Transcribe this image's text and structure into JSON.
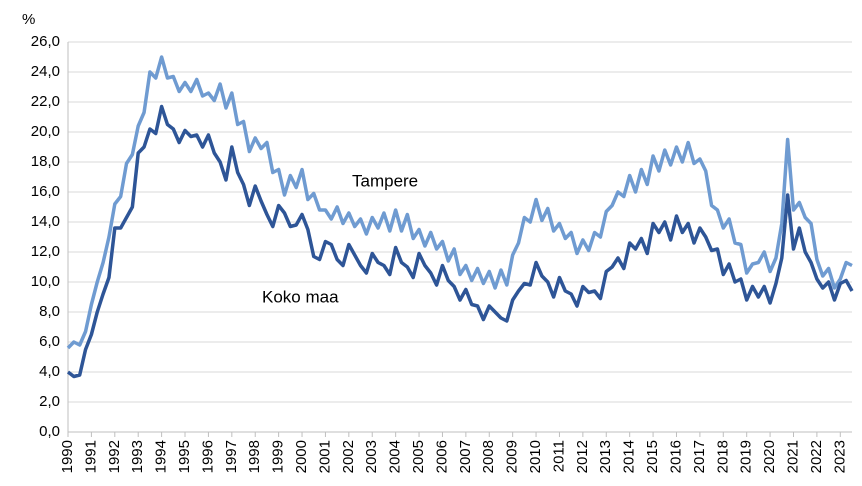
{
  "chart_data": {
    "type": "line",
    "ylabel": "%",
    "annotations": [
      "Tampere",
      "Koko maa"
    ],
    "x": [
      1990,
      1990.25,
      1990.5,
      1990.75,
      1991,
      1991.25,
      1991.5,
      1991.75,
      1992,
      1992.25,
      1992.5,
      1992.75,
      1993,
      1993.25,
      1993.5,
      1993.75,
      1994,
      1994.25,
      1994.5,
      1994.75,
      1995,
      1995.25,
      1995.5,
      1995.75,
      1996,
      1996.25,
      1996.5,
      1996.75,
      1997,
      1997.25,
      1997.5,
      1997.75,
      1998,
      1998.25,
      1998.5,
      1998.75,
      1999,
      1999.25,
      1999.5,
      1999.75,
      2000,
      2000.25,
      2000.5,
      2000.75,
      2001,
      2001.25,
      2001.5,
      2001.75,
      2002,
      2002.25,
      2002.5,
      2002.75,
      2003,
      2003.25,
      2003.5,
      2003.75,
      2004,
      2004.25,
      2004.5,
      2004.75,
      2005,
      2005.25,
      2005.5,
      2005.75,
      2006,
      2006.25,
      2006.5,
      2006.75,
      2007,
      2007.25,
      2007.5,
      2007.75,
      2008,
      2008.25,
      2008.5,
      2008.75,
      2009,
      2009.25,
      2009.5,
      2009.75,
      2010,
      2010.25,
      2010.5,
      2010.75,
      2011,
      2011.25,
      2011.5,
      2011.75,
      2012,
      2012.25,
      2012.5,
      2012.75,
      2013,
      2013.25,
      2013.5,
      2013.75,
      2014,
      2014.25,
      2014.5,
      2014.75,
      2015,
      2015.25,
      2015.5,
      2015.75,
      2016,
      2016.25,
      2016.5,
      2016.75,
      2017,
      2017.25,
      2017.5,
      2017.75,
      2018,
      2018.25,
      2018.5,
      2018.75,
      2019,
      2019.25,
      2019.5,
      2019.75,
      2020,
      2020.25,
      2020.5,
      2020.75,
      2021,
      2021.25,
      2021.5,
      2021.75,
      2022,
      2022.25,
      2022.5,
      2022.75,
      2023,
      2023.25,
      2023.5
    ],
    "series": [
      {
        "name": "Tampere",
        "color": "#6f9bd1",
        "values": [
          5.6,
          6.0,
          5.8,
          6.7,
          8.5,
          10.0,
          11.3,
          13.0,
          15.2,
          15.7,
          17.9,
          18.5,
          20.4,
          21.3,
          24.0,
          23.6,
          25.0,
          23.6,
          23.7,
          22.7,
          23.3,
          22.7,
          23.5,
          22.4,
          22.6,
          22.1,
          23.2,
          21.6,
          22.6,
          20.5,
          20.7,
          18.7,
          19.6,
          18.9,
          19.3,
          17.3,
          17.5,
          15.8,
          17.1,
          16.3,
          17.5,
          15.5,
          15.9,
          14.8,
          14.8,
          14.2,
          15.0,
          13.9,
          14.6,
          13.7,
          14.2,
          13.2,
          14.3,
          13.6,
          14.6,
          13.4,
          14.8,
          13.4,
          14.5,
          12.9,
          13.5,
          12.4,
          13.3,
          12.2,
          12.7,
          11.4,
          12.2,
          10.5,
          11.1,
          10.1,
          10.9,
          9.9,
          10.7,
          9.6,
          10.8,
          9.8,
          11.8,
          12.6,
          14.3,
          14.0,
          15.5,
          14.1,
          14.9,
          13.4,
          13.9,
          12.9,
          13.3,
          11.9,
          12.8,
          12.1,
          13.3,
          13.0,
          14.7,
          15.1,
          16.0,
          15.7,
          17.1,
          16.0,
          17.5,
          16.5,
          18.4,
          17.4,
          18.8,
          17.8,
          19.0,
          18.0,
          19.3,
          17.9,
          18.2,
          17.4,
          15.1,
          14.8,
          13.6,
          14.2,
          12.6,
          12.5,
          10.6,
          11.2,
          11.3,
          12.0,
          10.7,
          11.6,
          13.9,
          19.5,
          14.8,
          15.3,
          14.3,
          13.9,
          11.5,
          10.4,
          10.9,
          9.6,
          10.2,
          11.3,
          11.1
        ]
      },
      {
        "name": "Koko maa",
        "color": "#2e5597",
        "values": [
          4.0,
          3.7,
          3.8,
          5.5,
          6.5,
          8.0,
          9.2,
          10.3,
          13.6,
          13.6,
          14.3,
          15.0,
          18.6,
          19.0,
          20.2,
          19.9,
          21.7,
          20.5,
          20.2,
          19.3,
          20.1,
          19.7,
          19.8,
          19.0,
          19.8,
          18.6,
          18.0,
          16.8,
          19.0,
          17.3,
          16.5,
          15.1,
          16.4,
          15.4,
          14.5,
          13.7,
          15.1,
          14.6,
          13.7,
          13.8,
          14.5,
          13.5,
          11.7,
          11.5,
          12.7,
          12.5,
          11.5,
          11.1,
          12.5,
          11.8,
          11.1,
          10.6,
          11.9,
          11.3,
          11.1,
          10.5,
          12.3,
          11.3,
          11.0,
          10.3,
          11.9,
          11.1,
          10.6,
          9.8,
          11.1,
          10.1,
          9.7,
          8.8,
          9.5,
          8.5,
          8.4,
          7.5,
          8.4,
          8.0,
          7.6,
          7.4,
          8.8,
          9.4,
          9.9,
          9.8,
          11.3,
          10.4,
          10.0,
          9.0,
          10.3,
          9.4,
          9.2,
          8.4,
          9.7,
          9.3,
          9.4,
          8.9,
          10.7,
          11.0,
          11.6,
          10.9,
          12.6,
          12.2,
          12.9,
          11.9,
          13.9,
          13.3,
          14.0,
          12.8,
          14.4,
          13.3,
          13.9,
          12.6,
          13.6,
          13.0,
          12.1,
          12.2,
          10.5,
          11.2,
          10.0,
          10.2,
          8.8,
          9.7,
          9.0,
          9.7,
          8.6,
          9.9,
          11.6,
          15.8,
          12.2,
          13.6,
          12.0,
          11.3,
          10.2,
          9.6,
          10.0,
          8.8,
          9.9,
          10.1,
          9.4
        ]
      }
    ],
    "xlim": [
      1990,
      2023.5
    ],
    "xticks": [
      1990,
      1991,
      1992,
      1993,
      1994,
      1995,
      1996,
      1997,
      1998,
      1999,
      2000,
      2001,
      2002,
      2003,
      2004,
      2005,
      2006,
      2007,
      2008,
      2009,
      2010,
      2011,
      2012,
      2013,
      2014,
      2015,
      2016,
      2017,
      2018,
      2019,
      2020,
      2021,
      2022,
      2023
    ],
    "ylim": [
      0,
      26
    ],
    "yticks": [
      {
        "value": 0,
        "label": "0,0"
      },
      {
        "value": 2,
        "label": "2,0"
      },
      {
        "value": 4,
        "label": "4,0"
      },
      {
        "value": 6,
        "label": "6,0"
      },
      {
        "value": 8,
        "label": "8,0"
      },
      {
        "value": 10,
        "label": "10,0"
      },
      {
        "value": 12,
        "label": "12,0"
      },
      {
        "value": 14,
        "label": "14,0"
      },
      {
        "value": 16,
        "label": "16,0"
      },
      {
        "value": 18,
        "label": "18,0"
      },
      {
        "value": 20,
        "label": "20,0"
      },
      {
        "value": 22,
        "label": "22,0"
      },
      {
        "value": 24,
        "label": "24,0"
      },
      {
        "value": 26,
        "label": "26,0"
      }
    ],
    "grid": true
  }
}
